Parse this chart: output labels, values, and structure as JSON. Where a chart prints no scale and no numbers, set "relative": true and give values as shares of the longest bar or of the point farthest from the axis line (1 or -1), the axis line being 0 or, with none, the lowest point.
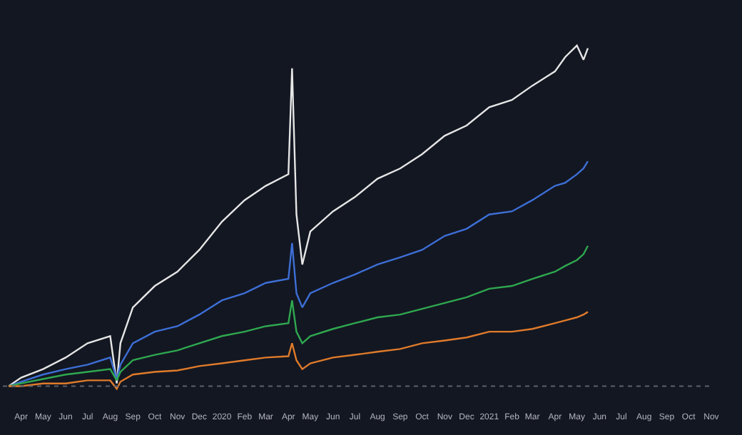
{
  "chart_data": {
    "type": "line",
    "relative": true,
    "tick_labels": "x",
    "marker": "none",
    "line_style": "solid",
    "x": [
      "2019-03-15",
      "2019-04-01",
      "2019-05-01",
      "2019-06-01",
      "2019-07-01",
      "2019-08-01",
      "2019-08-10",
      "2019-08-15",
      "2019-09-01",
      "2019-10-01",
      "2019-11-01",
      "2019-12-01",
      "2020-01-01",
      "2020-02-01",
      "2020-03-01",
      "2020-04-01",
      "2020-04-06",
      "2020-04-12",
      "2020-04-20",
      "2020-05-01",
      "2020-06-01",
      "2020-07-01",
      "2020-08-01",
      "2020-09-01",
      "2020-10-01",
      "2020-11-01",
      "2020-12-01",
      "2021-01-01",
      "2021-02-01",
      "2021-03-01",
      "2021-04-01",
      "2021-04-15",
      "2021-05-01",
      "2021-05-10",
      "2021-05-16"
    ],
    "xlim": [
      "2019-03-07",
      "2021-11-04"
    ],
    "xticks": [
      {
        "value": "2019-04-01",
        "label": "Apr"
      },
      {
        "value": "2019-05-01",
        "label": "May"
      },
      {
        "value": "2019-06-01",
        "label": "Jun"
      },
      {
        "value": "2019-07-01",
        "label": "Jul"
      },
      {
        "value": "2019-08-01",
        "label": "Aug"
      },
      {
        "value": "2019-09-01",
        "label": "Sep"
      },
      {
        "value": "2019-10-01",
        "label": "Oct"
      },
      {
        "value": "2019-11-01",
        "label": "Nov"
      },
      {
        "value": "2019-12-01",
        "label": "Dec"
      },
      {
        "value": "2020-01-01",
        "label": "2020"
      },
      {
        "value": "2020-02-01",
        "label": "Feb"
      },
      {
        "value": "2020-03-01",
        "label": "Mar"
      },
      {
        "value": "2020-04-01",
        "label": "Apr"
      },
      {
        "value": "2020-05-01",
        "label": "May"
      },
      {
        "value": "2020-06-01",
        "label": "Jun"
      },
      {
        "value": "2020-07-01",
        "label": "Jul"
      },
      {
        "value": "2020-08-01",
        "label": "Aug"
      },
      {
        "value": "2020-09-01",
        "label": "Sep"
      },
      {
        "value": "2020-10-01",
        "label": "Oct"
      },
      {
        "value": "2020-11-01",
        "label": "Nov"
      },
      {
        "value": "2020-12-01",
        "label": "Dec"
      },
      {
        "value": "2021-01-01",
        "label": "2021"
      },
      {
        "value": "2021-02-01",
        "label": "Feb"
      },
      {
        "value": "2021-03-01",
        "label": "Mar"
      },
      {
        "value": "2021-04-01",
        "label": "Apr"
      },
      {
        "value": "2021-05-01",
        "label": "May"
      },
      {
        "value": "2021-06-01",
        "label": "Jun"
      },
      {
        "value": "2021-07-01",
        "label": "Jul"
      },
      {
        "value": "2021-08-01",
        "label": "Aug"
      },
      {
        "value": "2021-09-01",
        "label": "Sep"
      },
      {
        "value": "2021-10-01",
        "label": "Oct"
      },
      {
        "value": "2021-11-01",
        "label": "Nov"
      }
    ],
    "ref_lines": [
      {
        "axis": "y",
        "value": 0,
        "color": "#5d606b",
        "line_style": "dotted"
      }
    ],
    "series": [
      {
        "color": "#e6e6e6",
        "values": [
          0,
          0.025,
          0.05,
          0.084,
          0.126,
          0.147,
          0.008,
          0.126,
          0.231,
          0.294,
          0.336,
          0.4,
          0.483,
          0.546,
          0.588,
          0.622,
          0.933,
          0.504,
          0.357,
          0.454,
          0.513,
          0.555,
          0.609,
          0.639,
          0.681,
          0.735,
          0.765,
          0.819,
          0.84,
          0.882,
          0.924,
          0.966,
          1,
          0.958,
          0.992
        ]
      },
      {
        "color": "#3d6fd6",
        "values": [
          0,
          0.013,
          0.034,
          0.05,
          0.063,
          0.084,
          0.021,
          0.063,
          0.126,
          0.16,
          0.176,
          0.21,
          0.252,
          0.273,
          0.303,
          0.315,
          0.42,
          0.273,
          0.231,
          0.273,
          0.303,
          0.328,
          0.357,
          0.378,
          0.4,
          0.441,
          0.462,
          0.504,
          0.513,
          0.546,
          0.588,
          0.597,
          0.622,
          0.639,
          0.66
        ]
      },
      {
        "color": "#2fa84f",
        "values": [
          0,
          0.008,
          0.021,
          0.034,
          0.042,
          0.05,
          0.017,
          0.042,
          0.076,
          0.092,
          0.105,
          0.126,
          0.147,
          0.16,
          0.176,
          0.185,
          0.252,
          0.16,
          0.126,
          0.147,
          0.168,
          0.185,
          0.202,
          0.21,
          0.227,
          0.244,
          0.261,
          0.286,
          0.294,
          0.315,
          0.336,
          0.353,
          0.37,
          0.387,
          0.412
        ]
      },
      {
        "color": "#e07b2a",
        "values": [
          0,
          0,
          0.008,
          0.008,
          0.017,
          0.017,
          -0.008,
          0.013,
          0.034,
          0.042,
          0.046,
          0.059,
          0.067,
          0.076,
          0.084,
          0.088,
          0.126,
          0.076,
          0.05,
          0.067,
          0.084,
          0.092,
          0.101,
          0.109,
          0.126,
          0.134,
          0.143,
          0.16,
          0.16,
          0.168,
          0.185,
          0.193,
          0.202,
          0.21,
          0.218
        ]
      }
    ]
  }
}
